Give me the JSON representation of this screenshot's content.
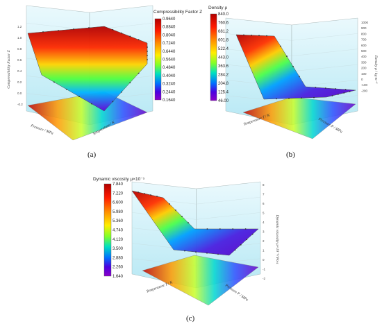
{
  "chart_data": [
    {
      "type": "surface3d",
      "panel": "(a)",
      "colorbar_title": "Compressibility Factor  Z",
      "colorbar_ticks": [
        "0.9640",
        "0.8840",
        "0.8040",
        "0.7240",
        "0.6440",
        "0.5640",
        "0.4840",
        "0.4040",
        "0.3240",
        "0.2440",
        "0.1640"
      ],
      "zlabel": "Compressibility Factor  Z",
      "xlabel": "Pressure / MPa",
      "ylabel": "Temperature / K",
      "ztick_labels": [
        "1.2",
        "1.0",
        "0.8",
        "0.6",
        "0.4",
        "0.2",
        "0.0",
        "-0.2"
      ]
    },
    {
      "type": "surface3d",
      "panel": "(b)",
      "colorbar_title": "Density ρ",
      "colorbar_ticks": [
        "840.0",
        "760.6",
        "681.2",
        "601.8",
        "522.4",
        "443.0",
        "363.6",
        "284.2",
        "204.8",
        "125.4",
        "46.00"
      ],
      "zlabel": "Density ρ / kg·m⁻³",
      "xlabel": "Temperature T / K",
      "ylabel": "Pressure P / MPa",
      "ztick_labels": [
        "1000",
        "900",
        "800",
        "700",
        "600",
        "500",
        "400",
        "300",
        "200",
        "100",
        "0",
        "-100",
        "-200"
      ]
    },
    {
      "type": "surface3d",
      "panel": "(c)",
      "colorbar_title": "Dynamic viscosity μ×10⁻⁵",
      "colorbar_ticks": [
        "7.840",
        "7.220",
        "6.600",
        "5.980",
        "5.360",
        "4.740",
        "4.120",
        "3.500",
        "2.880",
        "2.260",
        "1.640"
      ],
      "zlabel": "Dynamic viscosity μ×10⁻⁵/ Pa·s",
      "xlabel": "Temperature T / K",
      "ylabel": "Pressure P / MPa",
      "ztick_labels": [
        "8",
        "7",
        "6",
        "5",
        "4",
        "3",
        "2",
        "1",
        "0",
        "-1",
        "-2"
      ]
    }
  ]
}
